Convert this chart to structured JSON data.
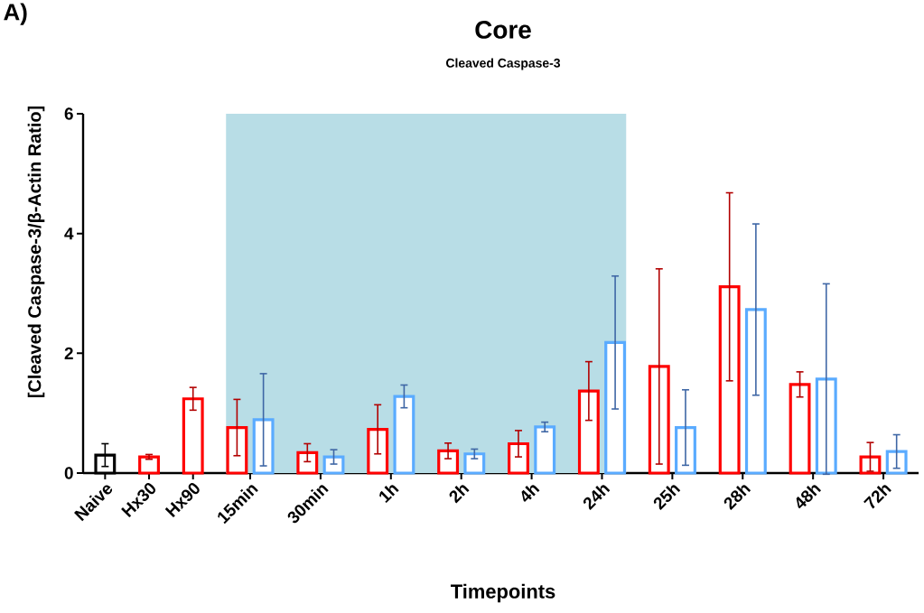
{
  "chart_data": {
    "type": "bar",
    "title": "Core",
    "subtitle": "Cleaved Caspase-3",
    "xlabel": "Timepoints",
    "ylabel": "[Cleaved Caspase-3/β-Actin Ratio]",
    "annotations": [
      "A)"
    ],
    "categories": [
      "Naive",
      "Hx30",
      "Hx90",
      "15min",
      "30min",
      "1h",
      "2h",
      "4h",
      "24h",
      "25h",
      "28h",
      "48h",
      "72h"
    ],
    "series": [
      {
        "color": "#ff0000",
        "colors": [
          "#000000",
          "#ff0000",
          "#ff0000",
          "#ff0000",
          "#ff0000",
          "#ff0000",
          "#ff0000",
          "#ff0000",
          "#ff0000",
          "#ff0000",
          "#ff0000",
          "#ff0000",
          "#ff0000"
        ],
        "values": [
          0.3,
          0.27,
          1.24,
          0.76,
          0.34,
          0.73,
          0.37,
          0.49,
          1.37,
          1.78,
          3.11,
          1.48,
          0.27
        ],
        "errors": [
          0.19,
          0.04,
          0.19,
          0.47,
          0.15,
          0.41,
          0.13,
          0.22,
          0.49,
          1.63,
          1.57,
          0.21,
          0.24
        ]
      },
      {
        "color": "#5aabff",
        "values": [
          null,
          null,
          null,
          0.89,
          0.27,
          1.28,
          0.32,
          0.77,
          2.18,
          0.76,
          2.73,
          1.57,
          0.36
        ],
        "errors": [
          null,
          null,
          null,
          0.77,
          0.12,
          0.19,
          0.08,
          0.08,
          1.11,
          0.63,
          1.43,
          1.59,
          0.28
        ]
      }
    ],
    "bands": [
      {
        "axis": "x",
        "from": "15min",
        "to": "24h",
        "color": "#b8dde6"
      }
    ],
    "ylim": [
      0,
      6
    ],
    "yticks": [
      0,
      2,
      4,
      6
    ]
  }
}
